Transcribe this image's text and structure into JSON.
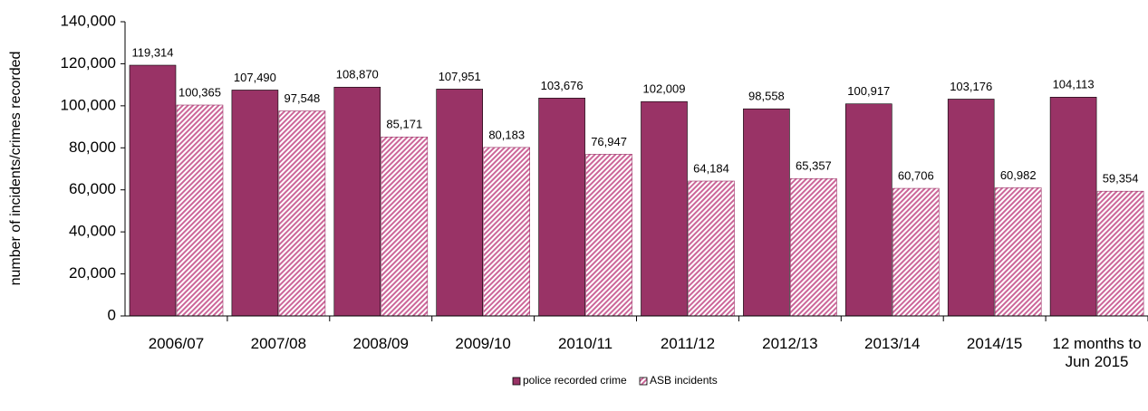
{
  "chart_data": {
    "type": "bar",
    "y_label": "number of incidents/crimes recorded",
    "categories": [
      "2006/07",
      "2007/08",
      "2008/09",
      "2009/10",
      "2010/11",
      "2011/12",
      "2012/13",
      "2013/14",
      "2014/15",
      "12 months to Jun 2015"
    ],
    "series": [
      {
        "name": "police recorded crime",
        "color": "#993366",
        "values": [
          119314,
          107490,
          108870,
          107951,
          103676,
          102009,
          98558,
          100917,
          103176,
          104113
        ],
        "value_labels": [
          "119,314",
          "107,490",
          "108,870",
          "107,951",
          "103,676",
          "102,009",
          "98,558",
          "100,917",
          "103,176",
          "104,113"
        ]
      },
      {
        "name": "ASB incidents",
        "color": "#cc6699",
        "values": [
          100365,
          97548,
          85171,
          80183,
          76947,
          64184,
          65357,
          60706,
          60982,
          59354
        ],
        "value_labels": [
          "100,365",
          "97,548",
          "85,171",
          "80,183",
          "76,947",
          "64,184",
          "65,357",
          "60,706",
          "60,982",
          "59,354"
        ]
      }
    ],
    "ylim": [
      0,
      140000
    ],
    "yticks": [
      0,
      {
        "value": 20000,
        "label": "20,000"
      },
      {
        "value": 40000,
        "label": "40,000"
      },
      {
        "value": 60000,
        "label": "60,000"
      },
      {
        "value": 80000,
        "label": "80,000"
      },
      {
        "value": 100000,
        "label": "100,000"
      },
      {
        "value": 120000,
        "label": "120,000"
      },
      {
        "value": 140000,
        "label": "140,000"
      }
    ],
    "grid": false,
    "legend": "bottom"
  }
}
